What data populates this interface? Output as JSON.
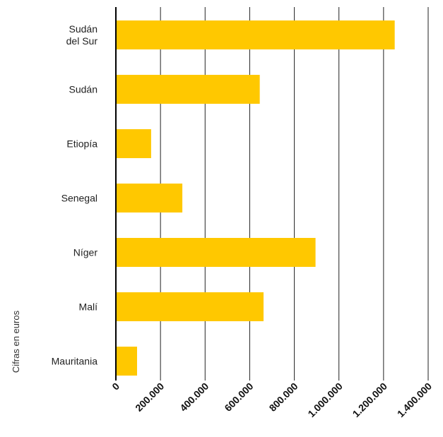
{
  "chart_data": {
    "type": "bar",
    "orientation": "horizontal",
    "categories": [
      "Sudán del Sur",
      "Sudán",
      "Etiopía",
      "Senegal",
      "Níger",
      "Malí",
      "Mauritania"
    ],
    "category_lines": [
      [
        "Sudán",
        "del Sur"
      ],
      [
        "Sudán"
      ],
      [
        "Etiopía"
      ],
      [
        "Senegal"
      ],
      [
        "Níger"
      ],
      [
        "Malí"
      ],
      [
        "Mauritania"
      ]
    ],
    "values": [
      1250000,
      645000,
      158000,
      298000,
      895000,
      662000,
      95000
    ],
    "xlim": [
      0,
      1400000
    ],
    "xticks": [
      0,
      200000,
      400000,
      600000,
      800000,
      1000000,
      1200000,
      1400000
    ],
    "xtick_labels": [
      "0",
      "200.000",
      "400.000",
      "600.000",
      "800.000",
      "1.000.000",
      "1.200.000",
      "1.400.000"
    ],
    "ylabel": "Cifras en euros",
    "xlabel": "",
    "title": "",
    "grid": "vertical",
    "legend": "none",
    "bar_color": "#FFC800",
    "gridline_color": "#222222"
  }
}
